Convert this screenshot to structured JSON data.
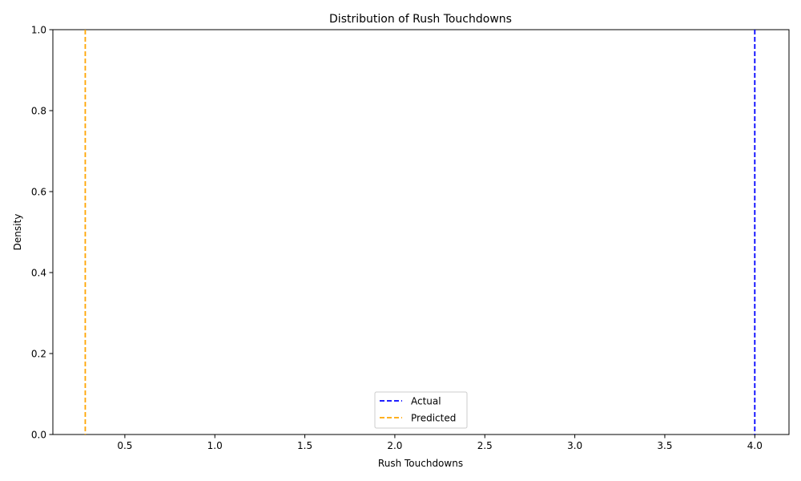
{
  "chart_data": {
    "type": "line",
    "title": "Distribution of Rush Touchdowns",
    "xlabel": "Rush Touchdowns",
    "ylabel": "Density",
    "xlim": [
      0.1,
      4.19
    ],
    "ylim": [
      0.0,
      1.0
    ],
    "xticks": [
      0.5,
      1.0,
      1.5,
      2.0,
      2.5,
      3.0,
      3.5,
      4.0
    ],
    "xtick_labels": [
      "0.5",
      "1.0",
      "1.5",
      "2.0",
      "2.5",
      "3.0",
      "3.5",
      "4.0"
    ],
    "yticks": [
      0.0,
      0.2,
      0.4,
      0.6,
      0.8,
      1.0
    ],
    "ytick_labels": [
      "0.0",
      "0.2",
      "0.4",
      "0.6",
      "0.8",
      "1.0"
    ],
    "grid": false,
    "legend_position": "lower center",
    "series": [
      {
        "name": "Actual",
        "type": "vline",
        "x": 4.0,
        "color": "#0000ff",
        "style": "dashed"
      },
      {
        "name": "Predicted",
        "type": "vline",
        "x": 0.28,
        "color": "#ffa500",
        "style": "dashed"
      }
    ]
  }
}
